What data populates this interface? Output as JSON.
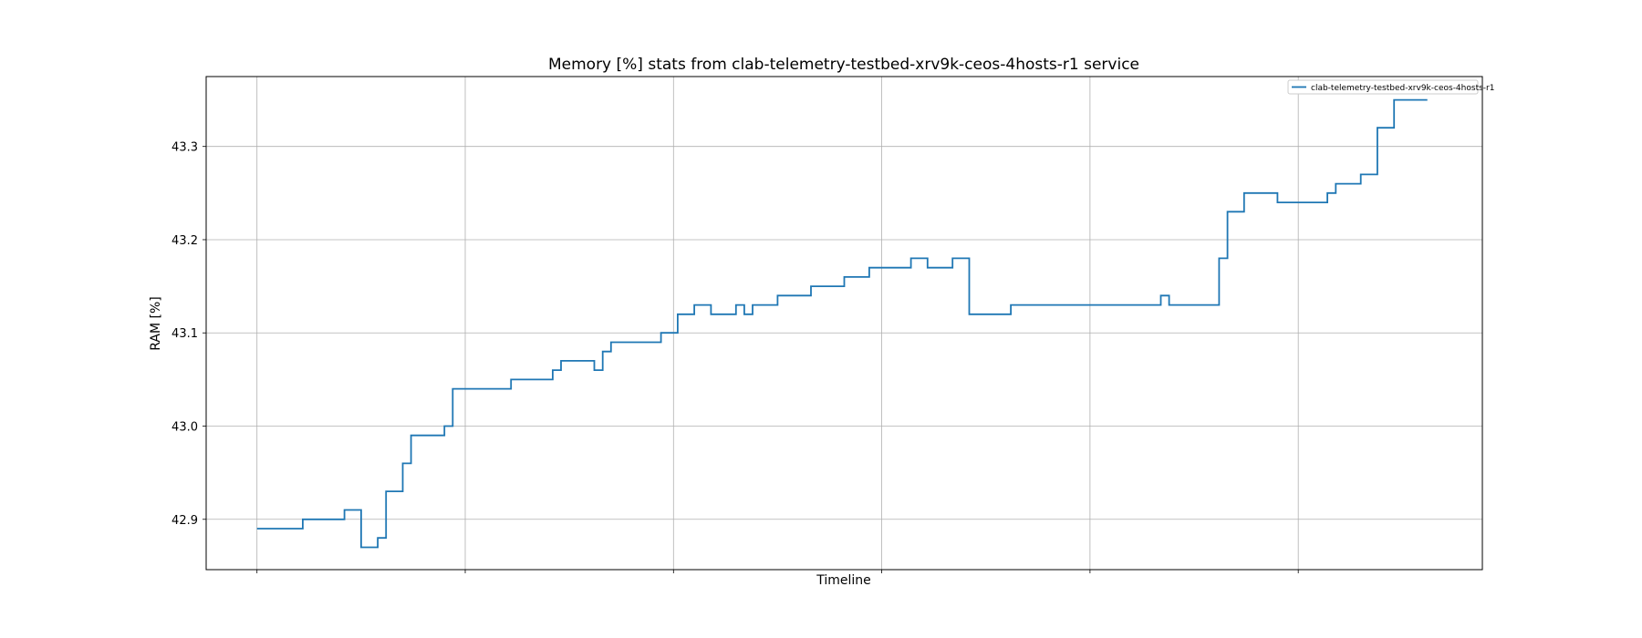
{
  "chart_data": {
    "type": "line",
    "step": true,
    "title": "Memory [%] stats from clab-telemetry-testbed-xrv9k-ceos-4hosts-r1 service",
    "xlabel": "Timeline",
    "ylabel": "RAM [%]",
    "xlim": [
      -6.1,
      147.1
    ],
    "ylim": [
      42.846,
      43.375
    ],
    "x_ticks": [
      0,
      25,
      50,
      75,
      100,
      125
    ],
    "x_tick_labels": [
      "",
      "",
      "",
      "",
      "",
      ""
    ],
    "y_ticks": [
      42.9,
      43.0,
      43.1,
      43.2,
      43.3
    ],
    "y_tick_labels": [
      "42.9",
      "43.0",
      "43.1",
      "43.2",
      "43.3"
    ],
    "grid": true,
    "legend_position": "top-right",
    "line_color": "#1f77b4",
    "series": [
      {
        "name": "clab-telemetry-testbed-xrv9k-ceos-4hosts-r1",
        "x": [
          0,
          5.5,
          10.5,
          12.5,
          14.5,
          15.5,
          16.5,
          17.5,
          18.5,
          19.5,
          22.5,
          23.5,
          30.5,
          35.5,
          36.5,
          40.5,
          41.5,
          42.5,
          43.5,
          48.5,
          50.5,
          52.5,
          54.5,
          57.5,
          58.5,
          59.5,
          61.5,
          62.5,
          66.5,
          70.5,
          73.5,
          78.5,
          80.5,
          83.5,
          85.5,
          90.5,
          99.5,
          108.5,
          109.5,
          115.5,
          116.5,
          118.5,
          122.5,
          128.5,
          129.5,
          132.5,
          134.5,
          136.5,
          140.5
        ],
        "y": [
          42.89,
          42.9,
          42.91,
          42.87,
          42.88,
          42.93,
          42.93,
          42.96,
          42.99,
          42.99,
          43.0,
          43.04,
          43.05,
          43.06,
          43.07,
          43.06,
          43.08,
          43.09,
          43.09,
          43.1,
          43.12,
          43.13,
          43.12,
          43.13,
          43.12,
          43.13,
          43.13,
          43.14,
          43.15,
          43.16,
          43.17,
          43.18,
          43.17,
          43.18,
          43.12,
          43.13,
          43.13,
          43.14,
          43.13,
          43.18,
          43.23,
          43.25,
          43.24,
          43.25,
          43.26,
          43.27,
          43.32,
          43.35,
          43.35
        ]
      }
    ]
  }
}
